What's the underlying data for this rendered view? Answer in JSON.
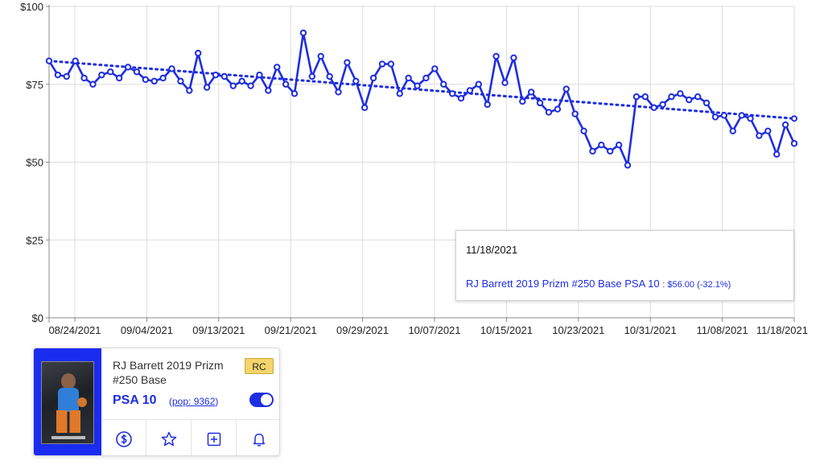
{
  "chart_data": {
    "type": "line",
    "x_ticks": [
      "08/24/2021",
      "09/04/2021",
      "09/13/2021",
      "09/21/2021",
      "09/29/2021",
      "10/07/2021",
      "10/15/2021",
      "10/23/2021",
      "10/31/2021",
      "11/08/2021",
      "11/18/2021"
    ],
    "y_ticks": [
      "$0",
      "$25",
      "$50",
      "$75",
      "$100"
    ],
    "ylim": [
      0,
      100
    ],
    "grid": true,
    "series": [
      {
        "color": "#1f2ee0",
        "values": [
          82.5,
          78,
          77.5,
          82.5,
          77,
          75,
          78,
          79,
          77,
          80.5,
          79,
          76.5,
          76,
          77,
          80,
          76,
          73,
          85,
          74,
          78,
          77.5,
          74.5,
          76,
          74.5,
          78,
          73,
          80.5,
          75,
          72,
          91.5,
          77.5,
          84,
          77.5,
          72.5,
          82,
          76,
          67.5,
          77,
          81.5,
          81.5,
          72,
          77,
          74.5,
          77,
          80,
          75,
          72,
          70.5,
          73,
          75,
          68.5,
          84,
          75.5,
          83.5,
          69.5,
          72.5,
          69,
          66,
          67,
          73.5,
          65.5,
          60,
          53.5,
          55.5,
          53.5,
          55.5,
          49,
          71,
          71,
          67.5,
          68.5,
          71,
          72,
          70,
          71,
          69,
          64.5,
          65,
          60,
          65,
          64,
          58.5,
          60,
          52.5,
          62,
          56
        ]
      },
      {
        "style": "dotted-trendline",
        "color": "#1f2ee0",
        "values": [
          82.5,
          64
        ]
      }
    ]
  },
  "tooltip": {
    "date": "11/18/2021",
    "series_label": "RJ Barrett 2019 Prizm #250 Base PSA 10",
    "value_text": ": $56.00 (-32.1%)"
  },
  "card": {
    "title": "RJ Barrett 2019 Prizm #250 Base",
    "badge": "RC",
    "grade": "PSA 10",
    "pop": "pop: 9362",
    "toggle_on": true,
    "actions": [
      "dollar-icon",
      "star-icon",
      "add-icon",
      "bell-icon"
    ]
  }
}
